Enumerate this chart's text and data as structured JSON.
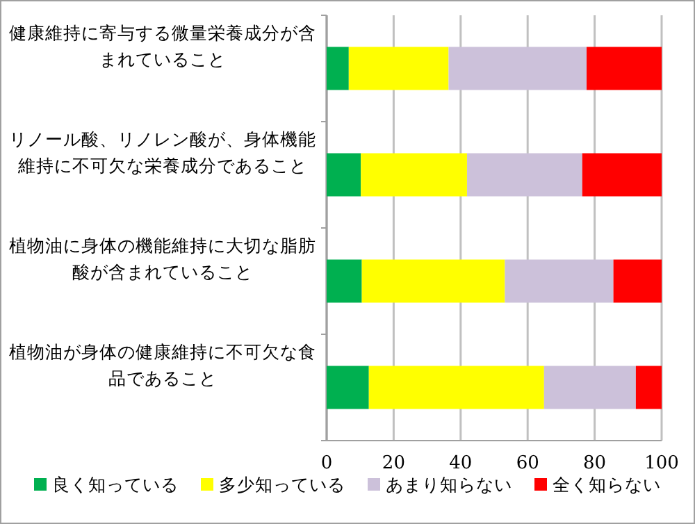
{
  "chart_data": {
    "type": "bar",
    "orientation": "horizontal",
    "stacked": true,
    "categories": [
      "健康維持に寄与する微量栄養成分が含まれていること",
      "リノール酸、リノレン酸が、身体機能維持に不可欠な栄養成分であること",
      "植物油に身体の機能維持に大切な脂肪酸が含まれていること",
      "植物油が身体の健康維持に不可欠な食品であること"
    ],
    "series": [
      {
        "name": "良く知っている",
        "color": "#00b050",
        "values": [
          6.6,
          10.2,
          10.5,
          12.6
        ]
      },
      {
        "name": "多少知っている",
        "color": "#ffff00",
        "values": [
          29.8,
          31.7,
          42.7,
          52.3
        ]
      },
      {
        "name": "あまり知らない",
        "color": "#ccc1da",
        "values": [
          41.2,
          34.4,
          32.4,
          27.4
        ]
      },
      {
        "name": "全く知らない",
        "color": "#ff0000",
        "values": [
          22.4,
          23.7,
          14.4,
          7.7
        ]
      }
    ],
    "xlim": [
      0,
      100
    ],
    "xticks": [
      0,
      20,
      40,
      60,
      80,
      100
    ],
    "grid": "x",
    "legend": "bottom"
  }
}
